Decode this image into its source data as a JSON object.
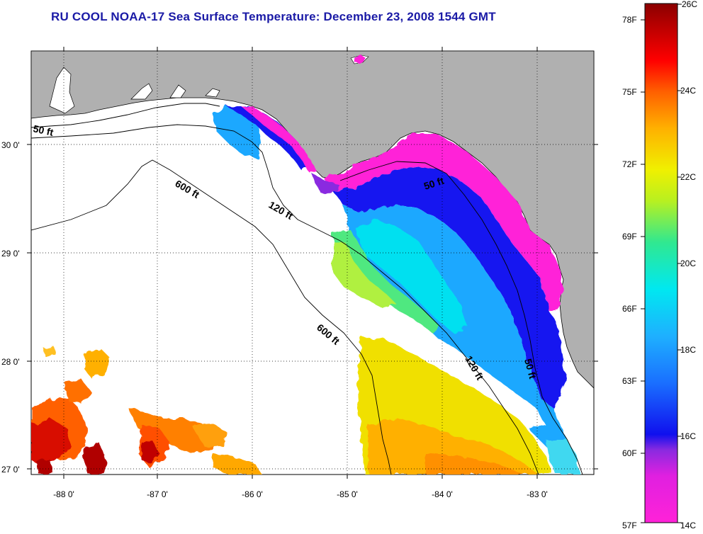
{
  "title": "RU COOL  NOAA-17  Sea Surface Temperature:  December 23, 2008 1544 GMT",
  "map": {
    "lon_labels": [
      "-88 0'",
      "-87 0'",
      "-86 0'",
      "-85 0'",
      "-84 0'",
      "-83 0'"
    ],
    "lat_labels": [
      "30 0'",
      "29 0'",
      "28 0'",
      "27 0'"
    ],
    "contour_labels": [
      "50 ft",
      "600 ft",
      "120 ft",
      "50 ft",
      "600 ft",
      "120 ft",
      "50 ft"
    ]
  },
  "colorbar": {
    "fahrenheit_labels": [
      "78F",
      "75F",
      "72F",
      "69F",
      "66F",
      "63F",
      "60F",
      "57F"
    ],
    "celsius_labels": [
      "26C",
      "24C",
      "22C",
      "20C",
      "18C",
      "16C",
      "14C"
    ],
    "range_c": [
      14,
      26
    ],
    "colors": [
      "#ff22d8",
      "#9b2ae0",
      "#1010ee",
      "#1e90ff",
      "#00e8f0",
      "#30e890",
      "#b8f020",
      "#f0f000",
      "#ffb000",
      "#ff6000",
      "#ff0000",
      "#b00000",
      "#8b0000"
    ]
  },
  "colors": {
    "land": "#b0b0b0",
    "title_text": "#1a1aa6",
    "no_data": "#ffffff"
  }
}
